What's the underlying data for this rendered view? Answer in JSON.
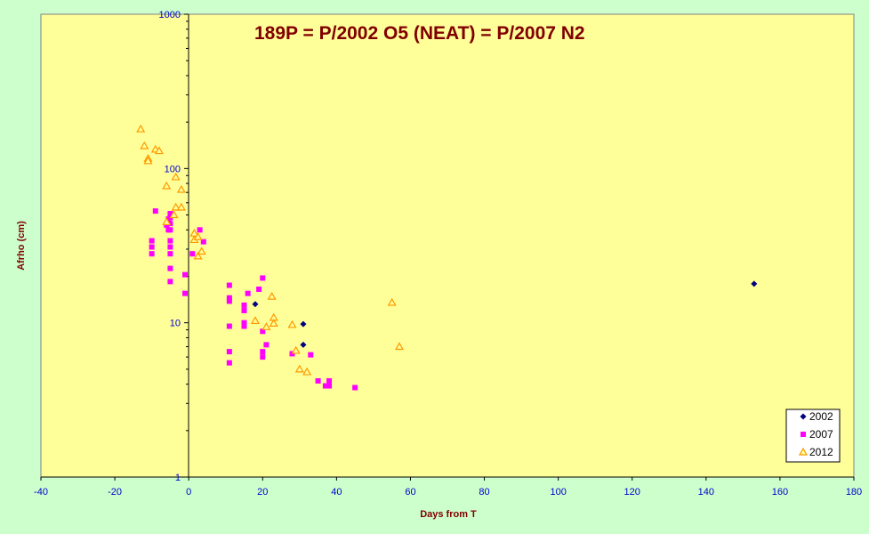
{
  "chart_data": {
    "type": "scatter",
    "title": "189P = P/2002 O5 (NEAT) = P/2007 N2",
    "xlabel": "Days from T",
    "ylabel": "Afrho (cm)",
    "xlim": [
      -40,
      180
    ],
    "ylim": [
      1,
      1000
    ],
    "yscale": "log",
    "x_ticks": [
      "-40",
      "-20",
      "0",
      "20",
      "40",
      "60",
      "80",
      "100",
      "120",
      "140",
      "160",
      "180"
    ],
    "y_ticks": [
      "1",
      "10",
      "100",
      "1000"
    ],
    "grid": false,
    "legend_position": "bottom-right",
    "series": [
      {
        "name": "2002",
        "marker": "diamond",
        "color": "#000080",
        "points": [
          [
            18,
            13.2
          ],
          [
            31,
            9.8
          ],
          [
            31,
            7.2
          ],
          [
            153,
            17.9
          ]
        ]
      },
      {
        "name": "2007",
        "marker": "square",
        "color": "#ff00ff",
        "points": [
          [
            -9,
            53
          ],
          [
            -10,
            34
          ],
          [
            -10,
            31
          ],
          [
            -10,
            28
          ],
          [
            -6,
            43
          ],
          [
            -5.5,
            47
          ],
          [
            -5.5,
            40
          ],
          [
            -5,
            51
          ],
          [
            -5,
            48
          ],
          [
            -5,
            44
          ],
          [
            -5,
            40
          ],
          [
            -5,
            34
          ],
          [
            -5,
            31
          ],
          [
            -5,
            28
          ],
          [
            -5,
            22.5
          ],
          [
            -5,
            18.5
          ],
          [
            -1,
            20.5
          ],
          [
            -1,
            15.5
          ],
          [
            1,
            28
          ],
          [
            3,
            40
          ],
          [
            4,
            33.5
          ],
          [
            11,
            17.5
          ],
          [
            11,
            14.5
          ],
          [
            11,
            13.8
          ],
          [
            11,
            9.5
          ],
          [
            11,
            6.5
          ],
          [
            11,
            5.5
          ],
          [
            15,
            13
          ],
          [
            15,
            12
          ],
          [
            15,
            10
          ],
          [
            15,
            9.5
          ],
          [
            16,
            15.5
          ],
          [
            19,
            16.5
          ],
          [
            20,
            19.5
          ],
          [
            20,
            8.8
          ],
          [
            20,
            6.5
          ],
          [
            20,
            6
          ],
          [
            21,
            7.2
          ],
          [
            28,
            6.3
          ],
          [
            33,
            6.2
          ],
          [
            35,
            4.2
          ],
          [
            37,
            3.9
          ],
          [
            38,
            4.2
          ],
          [
            38,
            3.9
          ],
          [
            45,
            3.8
          ]
        ]
      },
      {
        "name": "2012",
        "marker": "triangle",
        "color": "#ff9900",
        "points": [
          [
            -13,
            180
          ],
          [
            -12,
            140
          ],
          [
            -11,
            116
          ],
          [
            -11,
            112
          ],
          [
            -9,
            133
          ],
          [
            -8,
            130
          ],
          [
            -6,
            77
          ],
          [
            -6,
            45
          ],
          [
            -4,
            50
          ],
          [
            -3.5,
            88
          ],
          [
            -3.5,
            56
          ],
          [
            -2,
            73
          ],
          [
            -2,
            56
          ],
          [
            1.5,
            38
          ],
          [
            1.5,
            34.5
          ],
          [
            2.5,
            36
          ],
          [
            2.5,
            27
          ],
          [
            3.5,
            29
          ],
          [
            18,
            10.3
          ],
          [
            21,
            9.4
          ],
          [
            22.5,
            14.8
          ],
          [
            23,
            10.8
          ],
          [
            23,
            9.9
          ],
          [
            28,
            9.7
          ],
          [
            29,
            6.6
          ],
          [
            30,
            5
          ],
          [
            32,
            4.8
          ],
          [
            55,
            13.5
          ],
          [
            57,
            7
          ]
        ]
      }
    ]
  }
}
